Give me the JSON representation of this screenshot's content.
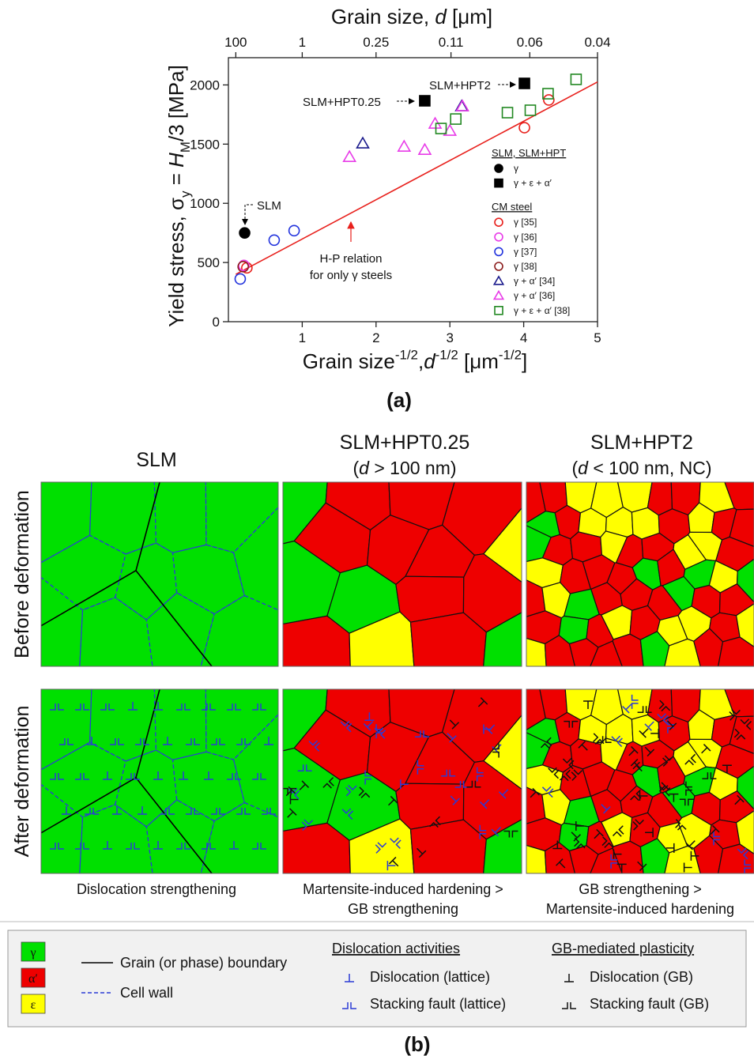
{
  "chart_data": {
    "type": "scatter",
    "x_label": [
      {
        "text": "Grain size"
      },
      {
        "text": "-1/2",
        "sup": true
      },
      {
        "text": ","
      },
      {
        "text": "d",
        "italic": true
      },
      {
        "text": "-1/2",
        "sup": true
      },
      {
        "text": " [μm"
      },
      {
        "text": "-1/2",
        "sup": true
      },
      {
        "text": "]"
      }
    ],
    "x2_label": [
      {
        "text": "Grain size, "
      },
      {
        "text": "d",
        "italic": true
      },
      {
        "text": " [μm]"
      }
    ],
    "y_label": [
      {
        "text": "Yield stress, σ"
      },
      {
        "text": "y",
        "sub": true
      },
      {
        "text": " = "
      },
      {
        "text": "H",
        "italic": true
      },
      {
        "text": "M",
        "sub": true
      },
      {
        "text": "/3 [MPa]"
      }
    ],
    "xlim": [
      0,
      5
    ],
    "xticks": [
      1,
      2,
      3,
      4,
      5
    ],
    "ylim": [
      0,
      2230
    ],
    "yticks": [
      0,
      500,
      1000,
      1500,
      2000
    ],
    "x2_scale": "inverse-sqrt",
    "x2ticks": [
      100,
      1,
      0.25,
      0.11,
      0.06,
      0.04
    ],
    "series": [
      {
        "name": "γ",
        "marker": "circle",
        "filled": true,
        "color": "#000000",
        "x": [
          0.22
        ],
        "values": [
          750
        ]
      },
      {
        "name": "γ + ε + α′",
        "marker": "square",
        "filled": true,
        "color": "#000000",
        "x": [
          2.66,
          4.01
        ],
        "values": [
          1866,
          2013
        ]
      },
      {
        "name": "γ [35]",
        "marker": "circle",
        "filled": false,
        "color": "#e8201c",
        "x": [
          0.25,
          4.01,
          4.34
        ],
        "values": [
          455,
          1639,
          1873
        ]
      },
      {
        "name": "γ [36]",
        "marker": "circle",
        "filled": false,
        "color": "#e83ce8",
        "x": [
          0.21
        ],
        "values": [
          475
        ]
      },
      {
        "name": "γ [37]",
        "marker": "circle",
        "filled": false,
        "color": "#2233dd",
        "x": [
          0.16,
          0.62,
          0.89
        ],
        "values": [
          361,
          689,
          769
        ]
      },
      {
        "name": "γ [38]",
        "marker": "circle",
        "filled": false,
        "color": "#8b1c1c",
        "x": [
          0.2
        ],
        "values": [
          465
        ]
      },
      {
        "name": "γ + α′ [34]",
        "marker": "triangle",
        "filled": false,
        "color": "#1a1a8c",
        "x": [
          1.82,
          3.16
        ],
        "values": [
          1505,
          1819
        ]
      },
      {
        "name": "γ + α′ [36]",
        "marker": "triangle",
        "filled": false,
        "color": "#e83ce8",
        "x": [
          1.64,
          2.38,
          2.66,
          2.8,
          3.0,
          3.17
        ],
        "values": [
          1391,
          1478,
          1451,
          1672,
          1612,
          1819
        ]
      },
      {
        "name": "γ + ε + α′ [38]",
        "marker": "square",
        "filled": false,
        "color": "#228822",
        "x": [
          2.88,
          3.08,
          3.78,
          4.09,
          4.33,
          4.71
        ],
        "values": [
          1632,
          1712,
          1766,
          1786,
          1926,
          2047
        ]
      }
    ],
    "legend_groups": [
      {
        "title": "SLM, SLM+HPT",
        "series": [
          0,
          1
        ]
      },
      {
        "title": "CM steel",
        "series": [
          2,
          3,
          4,
          5,
          6,
          7,
          8
        ]
      }
    ],
    "fit": {
      "color": "#e8201c",
      "x": [
        0.1,
        5
      ],
      "values": [
        400,
        2025
      ]
    },
    "fit_label": [
      "H-P relation",
      "for only γ steels"
    ],
    "annotations": [
      "SLM",
      "SLM+HPT0.25",
      "SLM+HPT2"
    ]
  },
  "panel_labels": [
    "(a)",
    "(b)"
  ],
  "schematic": {
    "columns": [
      {
        "title": "SLM",
        "caption": [
          "Dislocation strengthening"
        ]
      },
      {
        "title": "SLM+HPT0.25",
        "subtitle": [
          {
            "text": "("
          },
          {
            "text": "d",
            "italic": true
          },
          {
            "text": " > 100 nm)"
          }
        ],
        "caption": [
          "Martensite-induced hardening >",
          "GB strengthening"
        ]
      },
      {
        "title": "SLM+HPT2",
        "subtitle": [
          {
            "text": "("
          },
          {
            "text": "d",
            "italic": true
          },
          {
            "text": " < 100 nm, NC)"
          }
        ],
        "caption": [
          "GB strengthening >",
          "Martensite-induced hardening"
        ]
      }
    ],
    "rows": [
      "Before deformation",
      "After deformation"
    ],
    "legend": {
      "phases": [
        {
          "label": "γ",
          "color": "#00e000"
        },
        {
          "label": "α′",
          "color": "#ee0000"
        },
        {
          "label": "ε",
          "color": "#ffff00"
        }
      ],
      "lines": [
        "Grain (or phase) boundary",
        "Cell wall"
      ],
      "lattice": {
        "title": "Dislocation activities",
        "items": [
          "Dislocation (lattice)",
          "Stacking fault (lattice)"
        ]
      },
      "gb": {
        "title": "GB-mediated plasticity",
        "items": [
          "Dislocation (GB)",
          "Stacking fault (GB)"
        ]
      }
    }
  }
}
